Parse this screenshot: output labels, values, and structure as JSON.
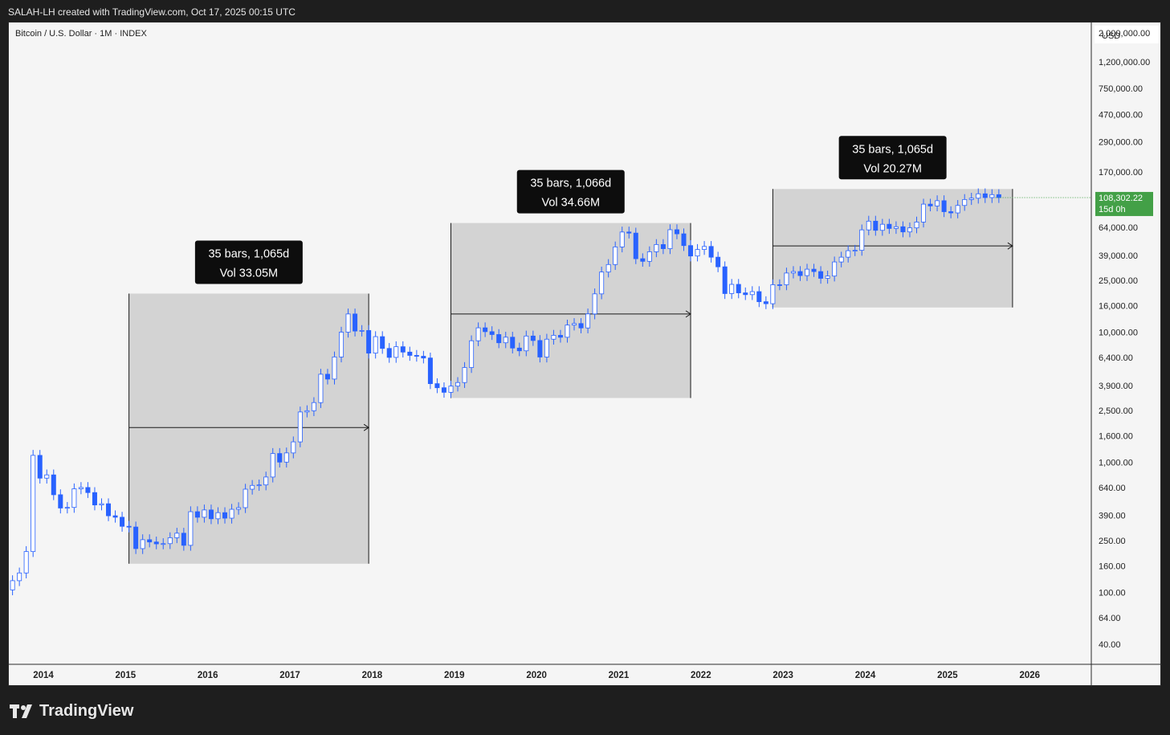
{
  "header": {
    "attribution": "SALAH-LH created with TradingView.com, Oct 17, 2025 00:15 UTC"
  },
  "symbol": {
    "title": "Bitcoin / U.S. Dollar · 1M · INDEX"
  },
  "footer": {
    "brand": "TradingView",
    "logo_icon": "tradingview-logo-icon"
  },
  "chart_data": {
    "type": "candlestick",
    "scale": "log",
    "currency": "USD",
    "ylim": [
      28,
      2400000
    ],
    "xlim": [
      2013.58,
      2026.75
    ],
    "y_ticks": [
      {
        "label": "2,000,000.00",
        "value": 2000000
      },
      {
        "label": "1,200,000.00",
        "value": 1200000
      },
      {
        "label": "750,000.00",
        "value": 750000
      },
      {
        "label": "470,000.00",
        "value": 470000
      },
      {
        "label": "290,000.00",
        "value": 290000
      },
      {
        "label": "170,000.00",
        "value": 170000
      },
      {
        "label": "64,000.00",
        "value": 64000
      },
      {
        "label": "39,000.00",
        "value": 39000
      },
      {
        "label": "25,000.00",
        "value": 25000
      },
      {
        "label": "16,000.00",
        "value": 16000
      },
      {
        "label": "10,000.00",
        "value": 10000
      },
      {
        "label": "6,400.00",
        "value": 6400
      },
      {
        "label": "3,900.00",
        "value": 3900
      },
      {
        "label": "2,500.00",
        "value": 2500
      },
      {
        "label": "1,600.00",
        "value": 1600
      },
      {
        "label": "1,000.00",
        "value": 1000
      },
      {
        "label": "640.00",
        "value": 640
      },
      {
        "label": "390.00",
        "value": 390
      },
      {
        "label": "250.00",
        "value": 250
      },
      {
        "label": "160.00",
        "value": 160
      },
      {
        "label": "100.00",
        "value": 100
      },
      {
        "label": "64.00",
        "value": 64
      },
      {
        "label": "40.00",
        "value": 40
      }
    ],
    "x_ticks": [
      {
        "label": "2014",
        "value": 2014
      },
      {
        "label": "2015",
        "value": 2015
      },
      {
        "label": "2016",
        "value": 2016
      },
      {
        "label": "2017",
        "value": 2017
      },
      {
        "label": "2018",
        "value": 2018
      },
      {
        "label": "2019",
        "value": 2019
      },
      {
        "label": "2020",
        "value": 2020
      },
      {
        "label": "2021",
        "value": 2021
      },
      {
        "label": "2022",
        "value": 2022
      },
      {
        "label": "2023",
        "value": 2023
      },
      {
        "label": "2024",
        "value": 2024
      },
      {
        "label": "2025",
        "value": 2025
      },
      {
        "label": "2026",
        "value": 2026
      }
    ],
    "last_price": {
      "price": "108,302.22",
      "countdown": "15d 0h",
      "value": 108302
    },
    "colors": {
      "up": "#ffffff",
      "down": "#2962ff",
      "border": "#2962ff",
      "wick": "#2962ff",
      "range_fill": "#d3d3d3",
      "price_label": "#43a047"
    },
    "start": {
      "year": 2013,
      "month": 8
    },
    "closes": [
      123,
      141,
      206,
      1130,
      755,
      800,
      563,
      445,
      450,
      625,
      640,
      585,
      470,
      480,
      388,
      378,
      322,
      318,
      217,
      254,
      244,
      236,
      237,
      263,
      285,
      230,
      417,
      378,
      430,
      368,
      410,
      372,
      435,
      448,
      621,
      664,
      670,
      770,
      1168,
      1003,
      1180,
      1435,
      2435,
      2490,
      2875,
      4750,
      4360,
      6450,
      10000,
      13800,
      10200,
      10300,
      6900,
      9240,
      7500,
      6400,
      7730,
      7030,
      6630,
      6530,
      6330,
      4020,
      3740,
      3450,
      3850,
      4100,
      5350,
      8590,
      10800,
      10090,
      9590,
      8290,
      9150,
      7550,
      7190,
      9340,
      8630,
      6440,
      8830,
      9460,
      9140,
      11340,
      11650,
      10780,
      13810,
      19700,
      28990,
      33100,
      45200,
      58850,
      57750,
      36700,
      35040,
      41500,
      47150,
      43830,
      61300,
      57000,
      46300,
      38500,
      43200,
      45600,
      37700,
      31800,
      19800,
      23300,
      20050,
      19430,
      20500,
      17150,
      16550,
      23150,
      23130,
      28480,
      29250,
      27220,
      30480,
      29230,
      25940,
      27000,
      34650,
      37720,
      42280,
      42580,
      61130,
      71300,
      60640,
      67520,
      62680,
      64630,
      58970,
      63330,
      70220,
      96400,
      93400,
      102400,
      84350,
      82550,
      94200,
      104600,
      107100,
      115750,
      108250,
      114050,
      108302
    ],
    "ranges": [
      {
        "label_bars": "35 bars, 1,065d",
        "label_vol": "Vol 33.05M",
        "start_index": 17,
        "end_index": 52,
        "low": 166,
        "high": 19800,
        "arrow_price": 1850
      },
      {
        "label_bars": "35 bars, 1,066d",
        "label_vol": "Vol 34.66M",
        "start_index": 64,
        "end_index": 99,
        "low": 3120,
        "high": 69000,
        "arrow_price": 13800
      },
      {
        "label_bars": "35 bars, 1,065d",
        "label_vol": "Vol 20.27M",
        "start_index": 111,
        "end_index": 146,
        "low": 15480,
        "high": 126000,
        "arrow_price": 46000
      }
    ]
  }
}
